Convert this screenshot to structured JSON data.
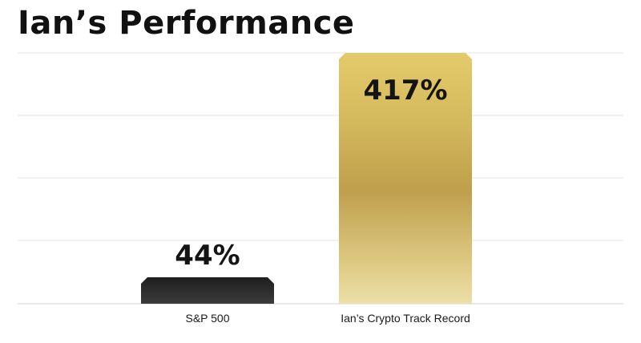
{
  "title": "Ian’s Performance",
  "chart_data": {
    "type": "bar",
    "title": "Ian’s Performance",
    "categories": [
      "S&P 500",
      "Ian’s Crypto Track Record"
    ],
    "values": [
      44,
      417
    ],
    "data_labels": [
      "44%",
      "417%"
    ],
    "unit": "%",
    "ylim": [
      0,
      417
    ],
    "grid": true,
    "legend": "none",
    "colors": {
      "S&P 500": "#2b2b2b",
      "Ian’s Crypto Track Record": "#c9a94f"
    }
  }
}
